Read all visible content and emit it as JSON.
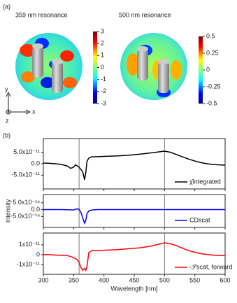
{
  "panel_labels": [
    "(a)",
    "(b)"
  ],
  "maps": [
    {
      "title": "359 nm resonance",
      "clim": [
        -3,
        3
      ],
      "ticks": [
        3,
        2,
        1,
        0,
        -1,
        -2,
        -3
      ]
    },
    {
      "title": "500 nm resonance",
      "clim": [
        -0.5,
        0.5
      ],
      "ticks": [
        0.5,
        0.25,
        0,
        -0.25,
        -0.5
      ]
    }
  ],
  "axes_labels": {
    "y": "y",
    "x": "x",
    "z": "z"
  },
  "chart_data": [
    {
      "type": "line",
      "xlim": [
        300,
        600
      ],
      "ylim": [
        -1.1e-10,
        1.1e-10
      ],
      "yticks": [
        {
          "value": 5e-11,
          "label": "5.0x10⁻¹¹"
        },
        {
          "value": 0,
          "label": "0.0"
        },
        {
          "value": -5e-11,
          "label": "-5.0x10⁻¹¹"
        }
      ],
      "vlines": [
        359,
        500
      ],
      "x": [
        300,
        310,
        320,
        330,
        340,
        345,
        350,
        353,
        356,
        359,
        362,
        365,
        368,
        370,
        372,
        375,
        380,
        390,
        400,
        420,
        440,
        460,
        480,
        500,
        510,
        520,
        530,
        540,
        550,
        560,
        570,
        580,
        590,
        600
      ],
      "series": [
        {
          "name": "χ̄integrated",
          "color": "#000000",
          "values": [
            3e-12,
            2e-12,
            0,
            -3e-12,
            -1e-11,
            -2e-11,
            -1.5e-11,
            -5e-12,
            -1e-11,
            -1.5e-11,
            -2.5e-11,
            -3.5e-11,
            -7e-11,
            -4e-11,
            1e-11,
            2.5e-11,
            3e-11,
            3.1e-11,
            3.2e-11,
            3.4e-11,
            3.7e-11,
            4.2e-11,
            4.8e-11,
            5.5e-11,
            5e-11,
            4e-11,
            3e-11,
            2e-11,
            1.2e-11,
            5e-12,
            0,
            -3e-12,
            -5e-12,
            -6e-12
          ]
        }
      ]
    },
    {
      "type": "line",
      "xlim": [
        300,
        600
      ],
      "ylim": [
        -1.3e-17,
        1.1e-17
      ],
      "ylabel": "Intensity",
      "yticks": [
        {
          "value": 5e-18,
          "label": "5.0x10⁻¹⁸"
        },
        {
          "value": 0,
          "label": "0.0"
        },
        {
          "value": -5e-18,
          "label": "-5.0x10⁻¹⁸"
        }
      ],
      "vlines": [
        359,
        500
      ],
      "x": [
        300,
        310,
        320,
        330,
        340,
        345,
        350,
        353,
        356,
        359,
        362,
        365,
        368,
        370,
        372,
        375,
        380,
        390,
        400,
        420,
        440,
        460,
        480,
        500,
        510,
        520,
        530,
        540,
        550,
        560,
        570,
        580,
        590,
        600
      ],
      "series": [
        {
          "name": "CDscat",
          "color": "#0000ff",
          "values": [
            0,
            0,
            0,
            0,
            -1e-19,
            -2e-19,
            -3e-19,
            3e-19,
            5e-19,
            2e-19,
            -2e-18,
            -6e-18,
            -1e-17,
            -8e-18,
            -3e-18,
            -1e-18,
            -3e-19,
            0,
            0,
            0,
            0,
            0,
            0,
            0,
            0,
            0,
            0,
            0,
            0,
            0,
            0,
            0,
            0,
            0
          ]
        }
      ]
    },
    {
      "type": "line",
      "xlim": [
        300,
        600
      ],
      "ylim": [
        -2e-11,
        2.2e-11
      ],
      "xlabel": "Wavelength [nm]",
      "xticks": [
        300,
        350,
        400,
        450,
        500,
        550,
        600
      ],
      "yticks": [
        {
          "value": 1e-11,
          "label": "1x10⁻¹¹"
        },
        0,
        {
          "value": -1e-11,
          "label": "-1x10⁻¹¹"
        }
      ],
      "vlines": [
        359,
        500
      ],
      "x": [
        300,
        310,
        320,
        330,
        340,
        345,
        350,
        353,
        356,
        359,
        362,
        365,
        368,
        370,
        372,
        375,
        380,
        390,
        400,
        420,
        440,
        460,
        480,
        500,
        510,
        520,
        530,
        540,
        550,
        560,
        570,
        580,
        590,
        600
      ],
      "series": [
        {
          "name": "-𝒮scat, forward",
          "color": "#ff0000",
          "values": [
            0,
            0,
            -5e-13,
            -5e-13,
            -1e-12,
            -2e-12,
            -3e-12,
            -4e-12,
            -5e-12,
            -8e-12,
            -1.3e-11,
            -1.6e-11,
            -1.4e-11,
            -1.6e-11,
            -1.2e-11,
            2e-12,
            4e-12,
            4.2e-12,
            4.5e-12,
            5e-12,
            6e-12,
            7e-12,
            9e-12,
            1.2e-11,
            1.1e-11,
            9e-12,
            6.5e-12,
            4e-12,
            2.5e-12,
            1e-12,
            2e-13,
            -5e-13,
            -8e-13,
            -1e-12
          ]
        }
      ]
    }
  ]
}
